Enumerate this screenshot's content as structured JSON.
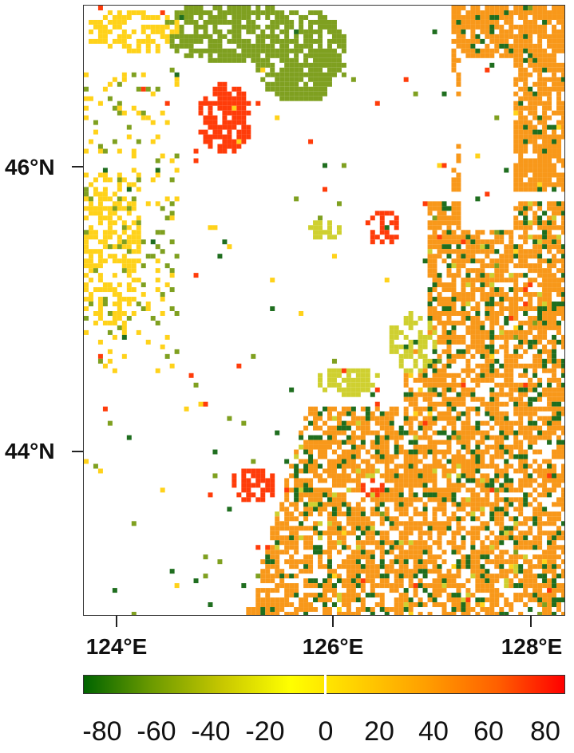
{
  "map": {
    "x_ticks": [
      "124°E",
      "126°E",
      "128°E"
    ],
    "y_ticks": [
      "46°N",
      "44°N"
    ],
    "lon_range": [
      123.7,
      128.3
    ],
    "lat_range": [
      42.7,
      47.0
    ]
  },
  "colorbar": {
    "labels": [
      "-80",
      "-60",
      "-40",
      "-20",
      "0",
      "20",
      "40",
      "60",
      "80"
    ],
    "range": [
      -90,
      90
    ],
    "colors": [
      "#006400",
      "#6b9a00",
      "#c8c800",
      "#ffff00",
      "#ffd000",
      "#ff9f00",
      "#ff6000",
      "#ff0000"
    ]
  },
  "legend_colors": {
    "dark_green": "#1f6e1f",
    "olive_green": "#7fa020",
    "yellow_green": "#cfd030",
    "yellow": "#ffd21a",
    "orange": "#f8981a",
    "red": "#ff3c0a"
  }
}
